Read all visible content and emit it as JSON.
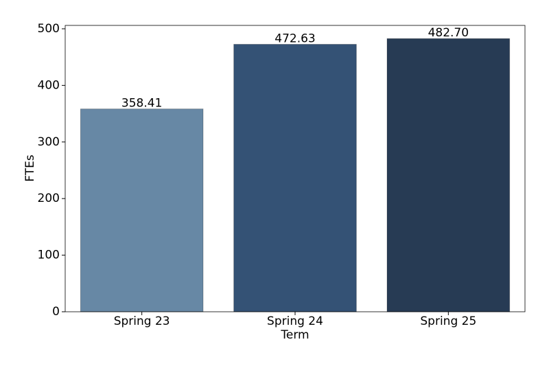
{
  "chart_data": {
    "type": "bar",
    "x_label": "Term",
    "y_label": "FTEs",
    "categories": [
      "Spring 23",
      "Spring 24",
      "Spring 25"
    ],
    "values": [
      358.41,
      472.63,
      482.7
    ],
    "value_labels": [
      "358.41",
      "472.63",
      "482.70"
    ],
    "colors": [
      "#6788a5",
      "#345275",
      "#273b54"
    ],
    "ylim": [
      0,
      506
    ],
    "yticks": [
      0,
      100,
      200,
      300,
      400,
      500
    ],
    "grid": false
  }
}
